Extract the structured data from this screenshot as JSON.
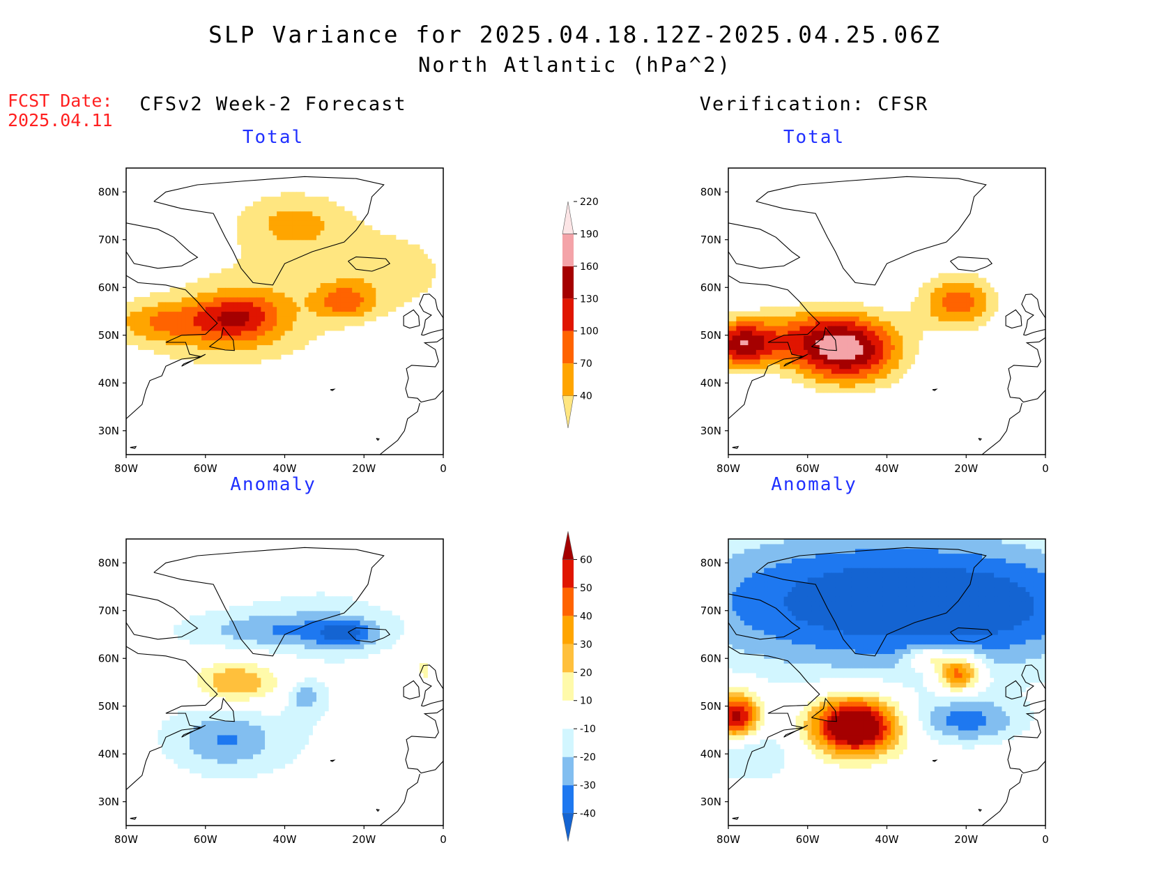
{
  "header": {
    "title_line1": "SLP Variance for 2025.04.18.12Z-2025.04.25.06Z",
    "title_line2": "North Atlantic (hPa^2)",
    "fcst_label": "FCST Date:",
    "fcst_date": "2025.04.11"
  },
  "columns": {
    "left": "CFSv2 Week-2 Forecast",
    "right": "Verification: CFSR"
  },
  "panels": {
    "top_left_title": "Total",
    "top_right_title": "Total",
    "bottom_left_title": "Anomaly",
    "bottom_right_title": "Anomaly"
  },
  "axes": {
    "lon_labels": [
      "80W",
      "60W",
      "40W",
      "20W",
      "0"
    ],
    "lat_labels": [
      "30N",
      "40N",
      "50N",
      "60N",
      "70N",
      "80N"
    ],
    "lon_range": [
      -80,
      0
    ],
    "lat_range": [
      25,
      85
    ]
  },
  "colorbar_total": {
    "levels": [
      "40",
      "70",
      "100",
      "130",
      "160",
      "190",
      "220"
    ],
    "colors": [
      "#ffe680",
      "#ffa500",
      "#ff6300",
      "#e01500",
      "#a50000",
      "#f4a3a8",
      "#fce5e6"
    ]
  },
  "colorbar_anomaly": {
    "levels": [
      "-40",
      "-30",
      "-20",
      "-10",
      "10",
      "20",
      "30",
      "40",
      "50",
      "60"
    ],
    "colors": [
      "#1464d2",
      "#1e78f0",
      "#82bef0",
      "#d2f6ff",
      "#ffffff",
      "#fffaaa",
      "#ffc03c",
      "#ffa500",
      "#ff6300",
      "#e01500",
      "#a50000"
    ]
  },
  "fields": {
    "fcst_total": [
      {
        "lon": -38,
        "lat": 74,
        "rx": 16,
        "ry": 7,
        "v": 75
      },
      {
        "lon": -45,
        "lat": 59,
        "rx": 30,
        "ry": 10,
        "v": 50
      },
      {
        "lon": -52,
        "lat": 54,
        "rx": 11,
        "ry": 4.8,
        "v": 105
      },
      {
        "lon": -72,
        "lat": 53,
        "rx": 13,
        "ry": 4.5,
        "v": 72
      },
      {
        "lon": -25,
        "lat": 57,
        "rx": 7,
        "ry": 3.5,
        "v": 80
      },
      {
        "lon": -12,
        "lat": 64,
        "rx": 17,
        "ry": 10,
        "v": 48
      },
      {
        "lon": -55,
        "lat": 48,
        "rx": 25,
        "ry": 7,
        "v": 48
      }
    ],
    "cfsr_total": [
      {
        "lon": -50,
        "lat": 47,
        "rx": 14,
        "ry": 7.5,
        "v": 190
      },
      {
        "lon": -77,
        "lat": 48,
        "rx": 8,
        "ry": 5,
        "v": 150
      },
      {
        "lon": -22,
        "lat": 57,
        "rx": 10,
        "ry": 6,
        "v": 115
      },
      {
        "lon": -65,
        "lat": 50,
        "rx": 16,
        "ry": 6,
        "v": 70
      }
    ],
    "fcst_anom": [
      {
        "lon": -52,
        "lat": 55,
        "rx": 12,
        "ry": 5,
        "v": 38
      },
      {
        "lon": -20,
        "lat": 46,
        "rx": 4,
        "ry": 2.5,
        "v": 15
      },
      {
        "lon": -5,
        "lat": 58,
        "rx": 4,
        "ry": 7,
        "v": 15
      },
      {
        "lon": -80,
        "lat": 54,
        "rx": 4,
        "ry": 4,
        "v": 15
      },
      {
        "lon": -40,
        "lat": 66,
        "rx": 25,
        "ry": 4,
        "v": -22
      },
      {
        "lon": -25,
        "lat": 65,
        "rx": 7,
        "ry": 3,
        "v": -26
      },
      {
        "lon": -55,
        "lat": 43,
        "rx": 12,
        "ry": 6,
        "v": -22
      },
      {
        "lon": -35,
        "lat": 52,
        "rx": 4,
        "ry": 3,
        "v": -22
      },
      {
        "lon": -45,
        "lat": 47,
        "rx": 45,
        "ry": 20,
        "v": -10
      },
      {
        "lon": -30,
        "lat": 72,
        "rx": 25,
        "ry": 12,
        "v": -8
      }
    ],
    "cfsr_anom": [
      {
        "lon": -48,
        "lat": 46,
        "rx": 11,
        "ry": 6,
        "v": 90
      },
      {
        "lon": -78,
        "lat": 48,
        "rx": 6,
        "ry": 5,
        "v": 70
      },
      {
        "lon": -22,
        "lat": 57,
        "rx": 5.5,
        "ry": 4,
        "v": 60
      },
      {
        "lon": -40,
        "lat": 72,
        "rx": 55,
        "ry": 15,
        "v": -50
      },
      {
        "lon": -20,
        "lat": 47,
        "rx": 14,
        "ry": 5,
        "v": -32
      },
      {
        "lon": -75,
        "lat": 40,
        "rx": 12,
        "ry": 6,
        "v": -22
      },
      {
        "lon": -10,
        "lat": 70,
        "rx": 20,
        "ry": 10,
        "v": -10
      },
      {
        "lon": -30,
        "lat": 60,
        "rx": 5,
        "ry": 2.5,
        "v": 30
      }
    ]
  }
}
